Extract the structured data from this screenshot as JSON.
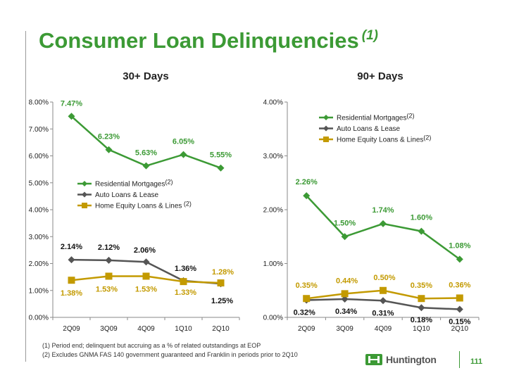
{
  "slide": {
    "title": "Consumer Loan Delinquencies",
    "title_note": "(1)",
    "footnotes": [
      "(1)  Period end; delinquent but accruing as a % of related outstandings at EOP",
      "(2)  Excludes GNMA FAS 140 government guaranteed and Franklin in periods prior to 2Q10"
    ],
    "logo": "Huntington",
    "page_number": "111",
    "colors": {
      "green": "#3c9a35",
      "gray": "#555555",
      "gold": "#c39a00"
    }
  },
  "chart_data": [
    {
      "type": "line",
      "title": "30+ Days",
      "categories": [
        "2Q09",
        "3Q09",
        "4Q09",
        "1Q10",
        "2Q10"
      ],
      "ylim": [
        0,
        8
      ],
      "yticks": [
        "0.00%",
        "1.00%",
        "2.00%",
        "3.00%",
        "4.00%",
        "5.00%",
        "6.00%",
        "7.00%",
        "8.00%"
      ],
      "legend_position": "center-left",
      "series": [
        {
          "name": "Residential Mortgages",
          "note": "(2)",
          "color": "#3c9a35",
          "values": [
            7.47,
            6.23,
            5.63,
            6.05,
            5.55
          ],
          "labels": [
            "7.47%",
            "6.23%",
            "5.63%",
            "6.05%",
            "5.55%"
          ]
        },
        {
          "name": "Auto Loans & Lease",
          "note": "",
          "color": "#555555",
          "values": [
            2.14,
            2.12,
            2.06,
            1.36,
            1.25
          ],
          "labels": [
            "2.14%",
            "2.12%",
            "2.06%",
            "1.36%",
            "1.25%"
          ]
        },
        {
          "name": "Home Equity Loans & Lines",
          "note": "(2)",
          "color": "#c39a00",
          "values": [
            1.38,
            1.53,
            1.53,
            1.33,
            1.28
          ],
          "labels": [
            "1.38%",
            "1.53%",
            "1.53%",
            "1.33%",
            "1.28%"
          ]
        }
      ]
    },
    {
      "type": "line",
      "title": "90+ Days",
      "categories": [
        "2Q09",
        "3Q09",
        "4Q09",
        "1Q10",
        "2Q10"
      ],
      "ylim": [
        0,
        4
      ],
      "yticks": [
        "0.00%",
        "1.00%",
        "2.00%",
        "3.00%",
        "4.00%"
      ],
      "legend_position": "top-left",
      "series": [
        {
          "name": "Residential Mortgages",
          "note": "(2)",
          "color": "#3c9a35",
          "values": [
            2.26,
            1.5,
            1.74,
            1.6,
            1.08
          ],
          "labels": [
            "2.26%",
            "1.50%",
            "1.74%",
            "1.60%",
            "1.08%"
          ]
        },
        {
          "name": "Auto Loans & Lease",
          "note": "",
          "color": "#555555",
          "values": [
            0.32,
            0.34,
            0.31,
            0.18,
            0.15
          ],
          "labels": [
            "0.32%",
            "0.34%",
            "0.31%",
            "0.18%",
            "0.15%"
          ]
        },
        {
          "name": "Home Equity Loans & Lines",
          "note": "(2)",
          "color": "#c39a00",
          "values": [
            0.35,
            0.44,
            0.5,
            0.35,
            0.36
          ],
          "labels": [
            "0.35%",
            "0.44%",
            "0.50%",
            "0.35%",
            "0.36%"
          ]
        }
      ]
    }
  ]
}
